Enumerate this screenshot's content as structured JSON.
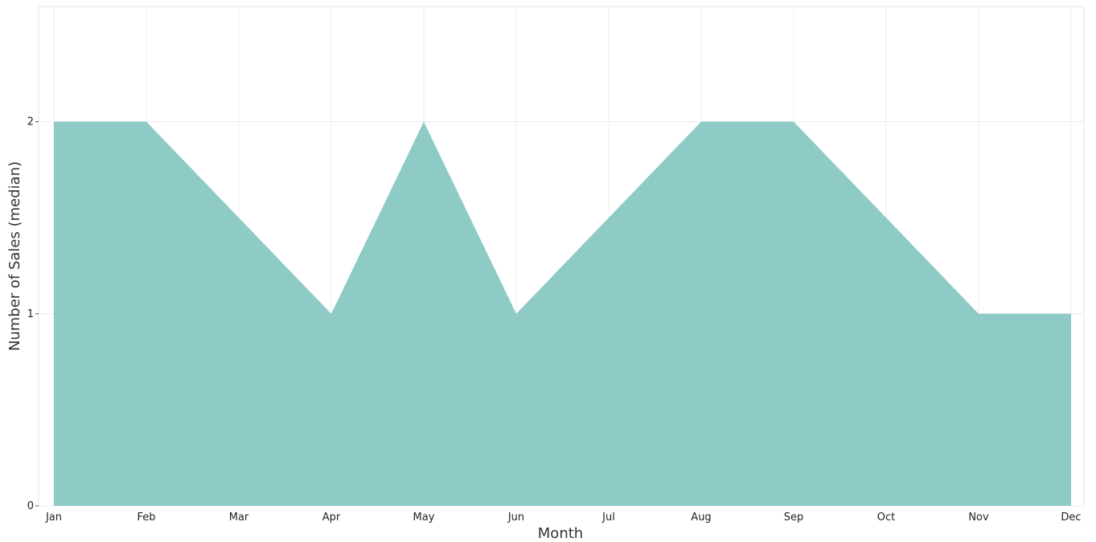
{
  "chart_data": {
    "type": "area",
    "title": "",
    "xlabel": "Month",
    "ylabel": "Number of Sales (median)",
    "categories": [
      "Jan",
      "Feb",
      "Mar",
      "Apr",
      "May",
      "Jun",
      "Jul",
      "Aug",
      "Sep",
      "Oct",
      "Nov",
      "Dec"
    ],
    "series": [
      {
        "values": [
          2,
          2,
          1.5,
          1,
          2,
          1,
          1.5,
          2,
          2,
          1.5,
          1,
          1
        ],
        "color": "#8ecbc6"
      }
    ],
    "yticks": [
      0,
      1,
      2
    ],
    "ylim": [
      0,
      2.6
    ],
    "grid": true,
    "legend": "none"
  }
}
